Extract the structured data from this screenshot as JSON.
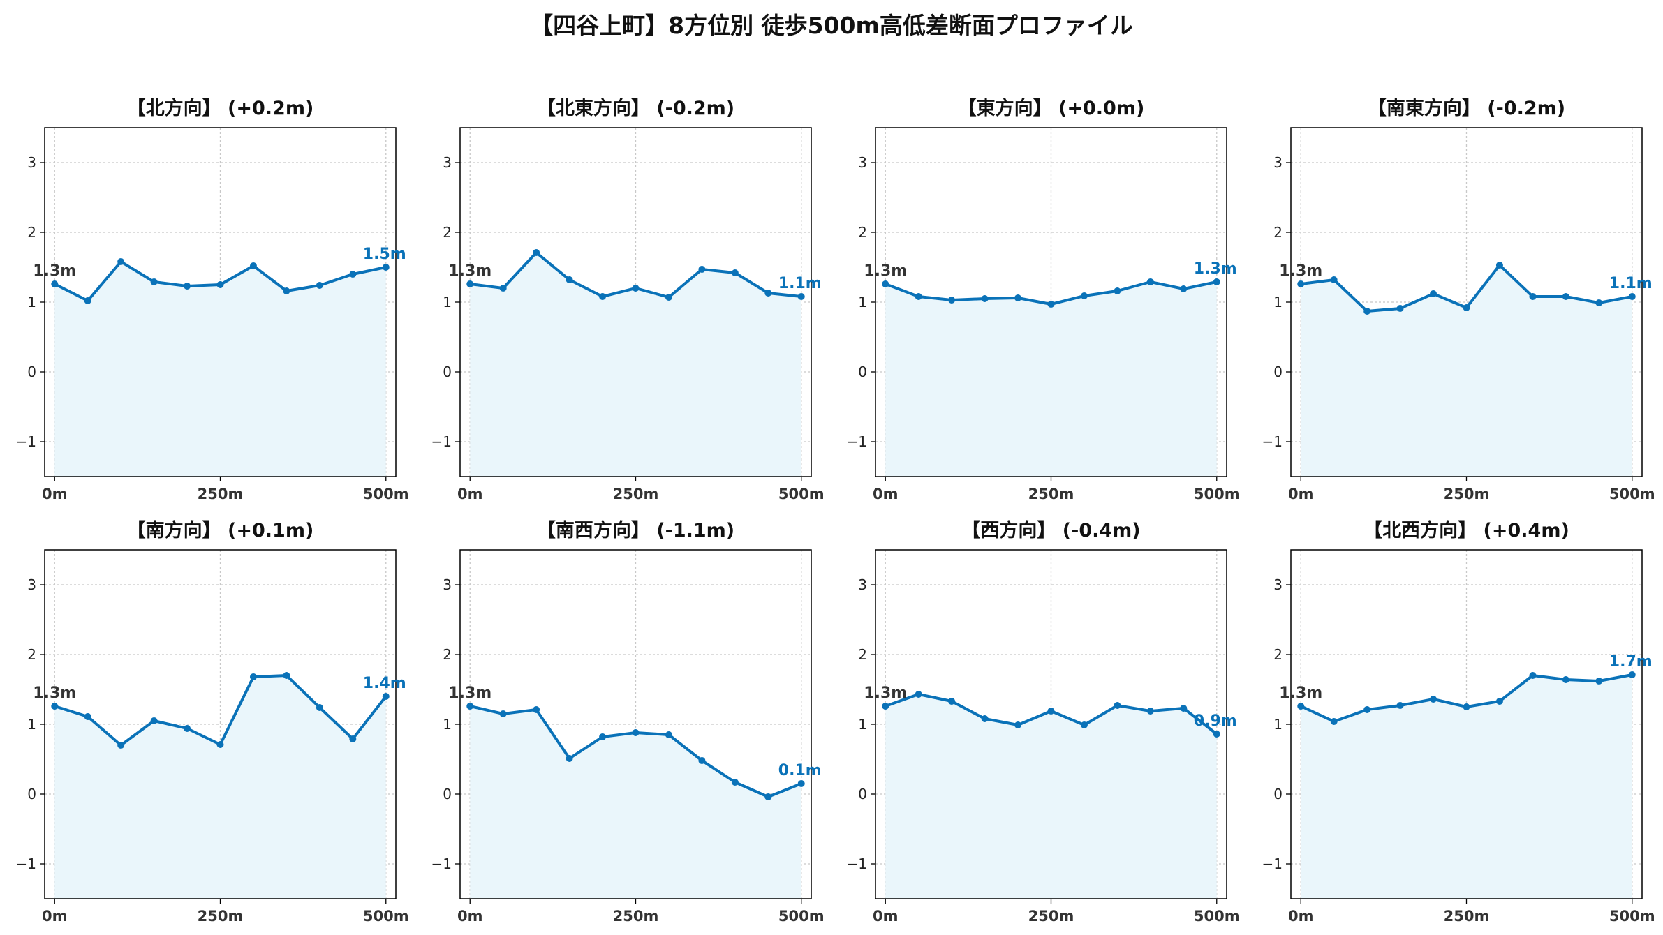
{
  "title": "【四谷上町】8方位別 徒歩500m高低差断面プロファイル",
  "colors": {
    "line": "#0a72b8",
    "fill": "#eaf6fb",
    "start_label": "#333333",
    "grid": "#c8c8c8"
  },
  "chart_data": [
    {
      "type": "area",
      "title": "【北方向】 (+0.2m)",
      "x": [
        0,
        50,
        100,
        150,
        200,
        250,
        300,
        350,
        400,
        450,
        500
      ],
      "y": [
        1.26,
        1.02,
        1.58,
        1.29,
        1.23,
        1.25,
        1.52,
        1.16,
        1.24,
        1.4,
        1.5
      ],
      "start_label": "1.3m",
      "end_label": "1.5m",
      "ylim": [
        -1.5,
        3.5
      ],
      "yticks": [
        -1,
        0,
        1,
        2,
        3
      ],
      "ytick_labels": [
        "−1",
        "0",
        "1",
        "2",
        "3"
      ],
      "xlim": [
        -15,
        515
      ],
      "xticks": [
        0,
        250,
        500
      ],
      "xtick_labels": [
        "0m",
        "250m",
        "500m"
      ],
      "grid": true
    },
    {
      "type": "area",
      "title": "【北東方向】 (-0.2m)",
      "x": [
        0,
        50,
        100,
        150,
        200,
        250,
        300,
        350,
        400,
        450,
        500
      ],
      "y": [
        1.26,
        1.2,
        1.71,
        1.32,
        1.08,
        1.2,
        1.07,
        1.47,
        1.42,
        1.13,
        1.08
      ],
      "start_label": "1.3m",
      "end_label": "1.1m",
      "ylim": [
        -1.5,
        3.5
      ],
      "yticks": [
        -1,
        0,
        1,
        2,
        3
      ],
      "ytick_labels": [
        "−1",
        "0",
        "1",
        "2",
        "3"
      ],
      "xlim": [
        -15,
        515
      ],
      "xticks": [
        0,
        250,
        500
      ],
      "xtick_labels": [
        "0m",
        "250m",
        "500m"
      ],
      "grid": true
    },
    {
      "type": "area",
      "title": "【東方向】 (+0.0m)",
      "x": [
        0,
        50,
        100,
        150,
        200,
        250,
        300,
        350,
        400,
        450,
        500
      ],
      "y": [
        1.26,
        1.08,
        1.03,
        1.05,
        1.06,
        0.97,
        1.09,
        1.16,
        1.29,
        1.19,
        1.29
      ],
      "start_label": "1.3m",
      "end_label": "1.3m",
      "ylim": [
        -1.5,
        3.5
      ],
      "yticks": [
        -1,
        0,
        1,
        2,
        3
      ],
      "ytick_labels": [
        "−1",
        "0",
        "1",
        "2",
        "3"
      ],
      "xlim": [
        -15,
        515
      ],
      "xticks": [
        0,
        250,
        500
      ],
      "xtick_labels": [
        "0m",
        "250m",
        "500m"
      ],
      "grid": true
    },
    {
      "type": "area",
      "title": "【南東方向】 (-0.2m)",
      "x": [
        0,
        50,
        100,
        150,
        200,
        250,
        300,
        350,
        400,
        450,
        500
      ],
      "y": [
        1.26,
        1.32,
        0.87,
        0.91,
        1.12,
        0.92,
        1.53,
        1.08,
        1.08,
        0.99,
        1.08
      ],
      "start_label": "1.3m",
      "end_label": "1.1m",
      "ylim": [
        -1.5,
        3.5
      ],
      "yticks": [
        -1,
        0,
        1,
        2,
        3
      ],
      "ytick_labels": [
        "−1",
        "0",
        "1",
        "2",
        "3"
      ],
      "xlim": [
        -15,
        515
      ],
      "xticks": [
        0,
        250,
        500
      ],
      "xtick_labels": [
        "0m",
        "250m",
        "500m"
      ],
      "grid": true
    },
    {
      "type": "area",
      "title": "【南方向】 (+0.1m)",
      "x": [
        0,
        50,
        100,
        150,
        200,
        250,
        300,
        350,
        400,
        450,
        500
      ],
      "y": [
        1.26,
        1.11,
        0.7,
        1.05,
        0.94,
        0.71,
        1.68,
        1.7,
        1.24,
        0.79,
        1.4
      ],
      "start_label": "1.3m",
      "end_label": "1.4m",
      "ylim": [
        -1.5,
        3.5
      ],
      "yticks": [
        -1,
        0,
        1,
        2,
        3
      ],
      "ytick_labels": [
        "−1",
        "0",
        "1",
        "2",
        "3"
      ],
      "xlim": [
        -15,
        515
      ],
      "xticks": [
        0,
        250,
        500
      ],
      "xtick_labels": [
        "0m",
        "250m",
        "500m"
      ],
      "grid": true
    },
    {
      "type": "area",
      "title": "【南西方向】 (-1.1m)",
      "x": [
        0,
        50,
        100,
        150,
        200,
        250,
        300,
        350,
        400,
        450,
        500
      ],
      "y": [
        1.26,
        1.15,
        1.21,
        0.51,
        0.82,
        0.88,
        0.85,
        0.48,
        0.17,
        -0.04,
        0.15
      ],
      "start_label": "1.3m",
      "end_label": "0.1m",
      "ylim": [
        -1.5,
        3.5
      ],
      "yticks": [
        -1,
        0,
        1,
        2,
        3
      ],
      "ytick_labels": [
        "−1",
        "0",
        "1",
        "2",
        "3"
      ],
      "xlim": [
        -15,
        515
      ],
      "xticks": [
        0,
        250,
        500
      ],
      "xtick_labels": [
        "0m",
        "250m",
        "500m"
      ],
      "grid": true
    },
    {
      "type": "area",
      "title": "【西方向】 (-0.4m)",
      "x": [
        0,
        50,
        100,
        150,
        200,
        250,
        300,
        350,
        400,
        450,
        500
      ],
      "y": [
        1.26,
        1.43,
        1.33,
        1.08,
        0.99,
        1.19,
        0.99,
        1.27,
        1.19,
        1.23,
        0.86
      ],
      "start_label": "1.3m",
      "end_label": "0.9m",
      "ylim": [
        -1.5,
        3.5
      ],
      "yticks": [
        -1,
        0,
        1,
        2,
        3
      ],
      "ytick_labels": [
        "−1",
        "0",
        "1",
        "2",
        "3"
      ],
      "xlim": [
        -15,
        515
      ],
      "xticks": [
        0,
        250,
        500
      ],
      "xtick_labels": [
        "0m",
        "250m",
        "500m"
      ],
      "grid": true
    },
    {
      "type": "area",
      "title": "【北西方向】 (+0.4m)",
      "x": [
        0,
        50,
        100,
        150,
        200,
        250,
        300,
        350,
        400,
        450,
        500
      ],
      "y": [
        1.26,
        1.04,
        1.21,
        1.27,
        1.36,
        1.25,
        1.33,
        1.7,
        1.64,
        1.62,
        1.71
      ],
      "start_label": "1.3m",
      "end_label": "1.7m",
      "ylim": [
        -1.5,
        3.5
      ],
      "yticks": [
        -1,
        0,
        1,
        2,
        3
      ],
      "ytick_labels": [
        "−1",
        "0",
        "1",
        "2",
        "3"
      ],
      "xlim": [
        -15,
        515
      ],
      "xticks": [
        0,
        250,
        500
      ],
      "xtick_labels": [
        "0m",
        "250m",
        "500m"
      ],
      "grid": true
    }
  ]
}
